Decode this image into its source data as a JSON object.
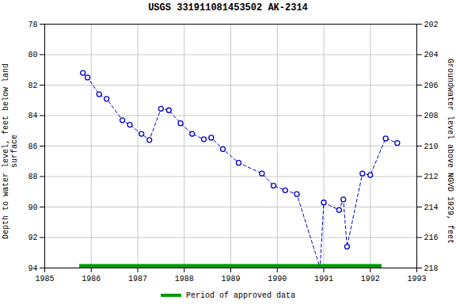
{
  "chart_data": {
    "type": "line",
    "title": "USGS 331911081453502 AK-2314",
    "ylabel": "Depth to water level, feet below land\nsurface",
    "y2label": "Groundwater level above NGVD 1929, feet",
    "x": [
      1985.82,
      1985.92,
      1986.17,
      1986.33,
      1986.67,
      1986.83,
      1987.08,
      1987.25,
      1987.5,
      1987.67,
      1987.92,
      1988.17,
      1988.42,
      1988.58,
      1988.83,
      1989.17,
      1989.67,
      1989.92,
      1990.17,
      1990.42,
      1990.92,
      1991.0,
      1991.33,
      1991.42,
      1991.5,
      1991.83,
      1992.0,
      1992.33,
      1992.58
    ],
    "series": [
      {
        "values": [
          81.2,
          81.5,
          82.6,
          82.9,
          84.3,
          84.6,
          85.2,
          85.6,
          83.55,
          83.65,
          84.5,
          85.2,
          85.55,
          85.45,
          86.2,
          87.1,
          87.8,
          88.6,
          88.9,
          89.15,
          94.0,
          89.7,
          90.2,
          89.5,
          92.6,
          87.8,
          87.9,
          85.5,
          85.8
        ],
        "color": "#0000cc",
        "marker": "open_circle",
        "line_style": "dashed"
      }
    ],
    "xlim": [
      1985,
      1993
    ],
    "xticks": [
      1985,
      1986,
      1987,
      1988,
      1989,
      1990,
      1991,
      1992,
      1993
    ],
    "ylim": [
      94,
      78
    ],
    "yticks": [
      78,
      80,
      82,
      84,
      86,
      88,
      90,
      92,
      94
    ],
    "y2lim": [
      218,
      202
    ],
    "y2ticks": [
      218,
      216,
      214,
      212,
      210,
      208,
      206,
      204,
      202
    ],
    "grid": true,
    "legend": "bottom",
    "period_bar": {
      "name": "Period of approved data",
      "color": "#009900",
      "x": [
        1985.75,
        1992.25
      ]
    }
  }
}
